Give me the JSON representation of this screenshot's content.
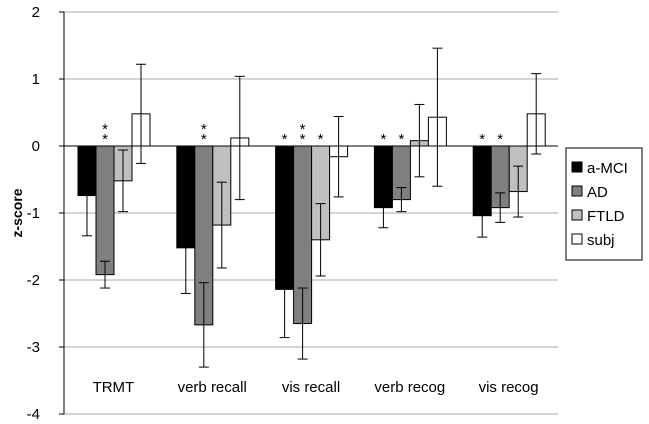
{
  "chart_data": {
    "type": "bar",
    "title": "",
    "xlabel": "",
    "ylabel": "z-score",
    "ylim": [
      -4,
      2
    ],
    "yticks": [
      2,
      1,
      0,
      -1,
      -2,
      -3,
      -4
    ],
    "grid": true,
    "legend_position": "right",
    "categories": [
      "TRMT",
      "verb recall",
      "vis recall",
      "verb recog",
      "vis recog"
    ],
    "series": [
      {
        "name": "a-MCI",
        "color": "#000000",
        "values": [
          -0.74,
          -1.52,
          -2.14,
          -0.92,
          -1.04
        ],
        "err_low": [
          -1.34,
          -2.2,
          -2.86,
          -1.22,
          -1.36
        ],
        "err_high": [
          -0.14,
          -0.84,
          -1.42,
          -0.62,
          -0.72
        ],
        "stars": [
          0,
          0,
          1,
          1,
          1
        ]
      },
      {
        "name": "AD",
        "color": "#7f7f7f",
        "values": [
          -1.92,
          -2.67,
          -2.65,
          -0.8,
          -0.92
        ],
        "err_low": [
          -2.12,
          -3.3,
          -3.18,
          -0.98,
          -1.14
        ],
        "err_high": [
          -1.72,
          -2.04,
          -2.12,
          -0.62,
          -0.7
        ],
        "stars": [
          2,
          2,
          2,
          1,
          1
        ]
      },
      {
        "name": "FTLD",
        "color": "#bfbfbf",
        "values": [
          -0.52,
          -1.18,
          -1.4,
          0.08,
          -0.68
        ],
        "err_low": [
          -0.98,
          -1.82,
          -1.94,
          -0.46,
          -1.06
        ],
        "err_high": [
          -0.06,
          -0.54,
          -0.86,
          0.62,
          -0.3
        ],
        "stars": [
          0,
          0,
          1,
          0,
          0
        ]
      },
      {
        "name": "subj",
        "color": "#ffffff",
        "values": [
          0.48,
          0.12,
          -0.16,
          0.43,
          0.48
        ],
        "err_low": [
          -0.26,
          -0.8,
          -0.76,
          -0.6,
          -0.12
        ],
        "err_high": [
          1.22,
          1.04,
          0.44,
          1.46,
          1.08
        ],
        "stars": [
          0,
          0,
          0,
          0,
          0
        ]
      }
    ]
  }
}
